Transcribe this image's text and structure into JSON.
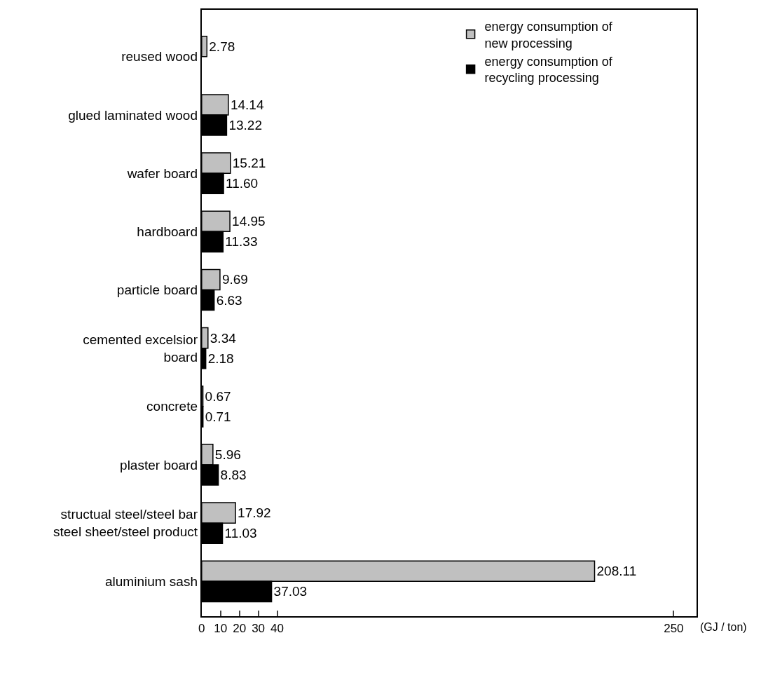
{
  "chart_data": {
    "type": "bar",
    "orientation": "horizontal",
    "legend": "top right",
    "xlabel": "(GJ / ton)",
    "categories": [
      "reused wood",
      "glued laminated wood",
      "wafer board",
      "hardboard",
      "particle board",
      "cemented excelsior\nboard",
      "concrete",
      "plaster board",
      "structual steel/steel bar\nsteel sheet/steel product",
      "aluminium sash"
    ],
    "series": [
      {
        "name": "energy consumption of\nnew processing",
        "color": "#c0c0c0",
        "values": [
          2.78,
          14.14,
          15.21,
          14.95,
          9.69,
          3.34,
          0.67,
          5.96,
          17.92,
          208.11
        ]
      },
      {
        "name": "energy consumption of\nrecycling processing",
        "color": "#000000",
        "values": [
          null,
          13.22,
          11.6,
          11.33,
          6.63,
          2.18,
          0.71,
          8.83,
          11.03,
          37.03
        ],
        "value_labels": [
          null,
          "13.22",
          "11.60",
          "11.33",
          "6.63",
          "2.18",
          "0.71",
          "8.83",
          "11.03",
          "37.03"
        ]
      }
    ],
    "data_labels": true,
    "xlim": [
      0,
      262
    ],
    "xticks": [
      0,
      10,
      20,
      30,
      40,
      250
    ]
  }
}
